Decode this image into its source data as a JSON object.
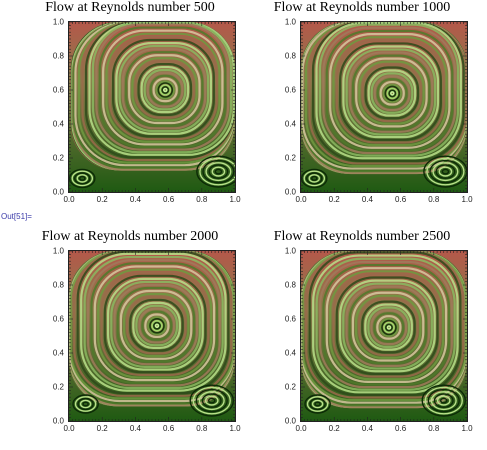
{
  "output_label": "Out[51]=",
  "colors": {
    "background_green": "#1f5a12",
    "ring_light": "#b9e08a",
    "ring_dark": "#2e4a1a",
    "ring_brown": "#9a6a4a",
    "top_red": "#b4584a"
  },
  "panels": [
    {
      "title": "Flow at Reynolds number 500",
      "reynolds": 500,
      "x_ticks": [
        "0.0",
        "0.2",
        "0.4",
        "0.6",
        "0.8",
        "1.0"
      ],
      "y_ticks": [
        "0.0",
        "0.2",
        "0.4",
        "0.6",
        "0.8",
        "1.0"
      ],
      "main_vortex": [
        0.58,
        0.6
      ],
      "corner_right": [
        0.9,
        0.12
      ],
      "corner_left": [
        0.08,
        0.08
      ]
    },
    {
      "title": "Flow at Reynolds number 1000",
      "reynolds": 1000,
      "x_ticks": [
        "0.0",
        "0.2",
        "0.4",
        "0.6",
        "0.8",
        "1.0"
      ],
      "y_ticks": [
        "0.0",
        "0.2",
        "0.4",
        "0.6",
        "0.8",
        "1.0"
      ],
      "main_vortex": [
        0.55,
        0.58
      ],
      "corner_right": [
        0.87,
        0.12
      ],
      "corner_left": [
        0.08,
        0.08
      ]
    },
    {
      "title": "Flow at Reynolds number 2000",
      "reynolds": 2000,
      "x_ticks": [
        "0.0",
        "0.2",
        "0.4",
        "0.6",
        "0.8",
        "1.0"
      ],
      "y_ticks": [
        "0.0",
        "0.2",
        "0.4",
        "0.6",
        "0.8",
        "1.0"
      ],
      "main_vortex": [
        0.53,
        0.56
      ],
      "corner_right": [
        0.86,
        0.12
      ],
      "corner_left": [
        0.1,
        0.1
      ]
    },
    {
      "title": "Flow at Reynolds number 2500",
      "reynolds": 2500,
      "x_ticks": [
        "0.0",
        "0.2",
        "0.4",
        "0.6",
        "0.8",
        "1.0"
      ],
      "y_ticks": [
        "0.0",
        "0.2",
        "0.4",
        "0.6",
        "0.8",
        "1.0"
      ],
      "main_vortex": [
        0.53,
        0.55
      ],
      "corner_right": [
        0.86,
        0.12
      ],
      "corner_left": [
        0.1,
        0.1
      ]
    }
  ]
}
